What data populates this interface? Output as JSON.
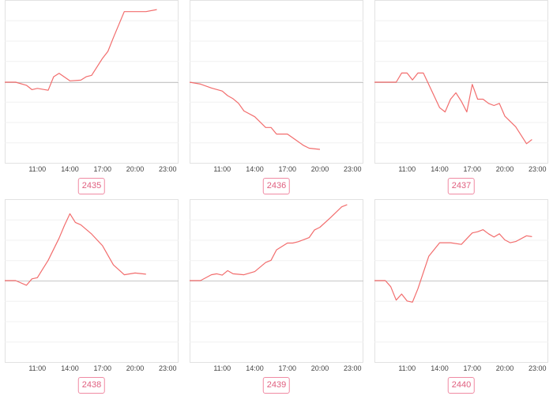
{
  "accent_color": "#f26d6d",
  "badge_color": "#e05f7f",
  "chart_data": [
    {
      "type": "line",
      "label": "2435",
      "xticks": [
        "11:00",
        "14:00",
        "17:00",
        "20:00",
        "23:00"
      ],
      "grid": true,
      "x": [
        "08:00",
        "09:00",
        "10:00",
        "10:30",
        "11:00",
        "12:00",
        "12:30",
        "13:00",
        "14:00",
        "15:00",
        "15:30",
        "16:00",
        "17:00",
        "17:30",
        "18:00",
        "19:00",
        "20:00",
        "21:00",
        "22:00"
      ],
      "y": [
        0,
        0,
        -0.5,
        -1.2,
        -1,
        -1.3,
        0.8,
        1.3,
        0.2,
        0.3,
        0.8,
        1,
        3.5,
        4.5,
        6.5,
        10.3,
        10.3,
        10.3,
        10.6
      ],
      "ylim": [
        -13,
        12
      ]
    },
    {
      "type": "line",
      "label": "2436",
      "xticks": [
        "11:00",
        "14:00",
        "17:00",
        "20:00",
        "23:00"
      ],
      "grid": true,
      "x": [
        "08:00",
        "09:00",
        "10:00",
        "11:00",
        "11:30",
        "12:00",
        "12:30",
        "13:00",
        "14:00",
        "15:00",
        "15:30",
        "16:00",
        "17:00",
        "17:30",
        "18:00",
        "18:30",
        "19:00",
        "20:00"
      ],
      "y": [
        0,
        -0.5,
        -1.5,
        -2.3,
        -3.5,
        -4.3,
        -5.5,
        -7.5,
        -9,
        -11.8,
        -11.8,
        -13.5,
        -13.5,
        -14.5,
        -15.5,
        -16.5,
        -17.2,
        -17.5
      ],
      "ylim": [
        -21,
        20
      ]
    },
    {
      "type": "line",
      "label": "2437",
      "xticks": [
        "11:00",
        "14:00",
        "17:00",
        "20:00",
        "23:00"
      ],
      "grid": true,
      "x": [
        "08:00",
        "09:00",
        "10:00",
        "10:30",
        "11:00",
        "11:30",
        "12:00",
        "12:30",
        "14:00",
        "14:30",
        "15:00",
        "15:30",
        "16:00",
        "16:30",
        "17:00",
        "17:30",
        "18:00",
        "18:30",
        "19:00",
        "19:30",
        "20:00",
        "21:00",
        "22:00",
        "22:30"
      ],
      "y": [
        0,
        0,
        0,
        2,
        2,
        0.5,
        2,
        2,
        -6,
        -7,
        -4,
        -2.5,
        -4.5,
        -7,
        -0.5,
        -4,
        -4,
        -5,
        -5.5,
        -5,
        -8,
        -10.5,
        -14.5,
        -13.5
      ],
      "ylim": [
        -19,
        18
      ]
    },
    {
      "type": "line",
      "label": "2438",
      "xticks": [
        "11:00",
        "14:00",
        "17:00",
        "20:00",
        "23:00"
      ],
      "grid": true,
      "x": [
        "08:00",
        "09:00",
        "10:00",
        "10:30",
        "11:00",
        "11:30",
        "12:00",
        "13:00",
        "13:30",
        "14:00",
        "14:30",
        "15:00",
        "16:00",
        "17:00",
        "18:00",
        "19:00",
        "20:00",
        "21:00"
      ],
      "y": [
        0,
        0,
        -0.8,
        0.3,
        0.5,
        2,
        3.5,
        7.3,
        9.5,
        11.5,
        10,
        9.6,
        8,
        6,
        2.7,
        1,
        1.3,
        1.1
      ],
      "ylim": [
        -14,
        14
      ]
    },
    {
      "type": "line",
      "label": "2439",
      "xticks": [
        "11:00",
        "14:00",
        "17:00",
        "20:00",
        "23:00"
      ],
      "grid": true,
      "x": [
        "08:00",
        "09:00",
        "10:00",
        "10:30",
        "11:00",
        "11:30",
        "12:00",
        "13:00",
        "14:00",
        "15:00",
        "15:30",
        "16:00",
        "17:00",
        "17:30",
        "18:00",
        "19:00",
        "19:30",
        "20:00",
        "21:00",
        "22:00",
        "22:30"
      ],
      "y": [
        0,
        0,
        1.3,
        1.5,
        1.2,
        2.2,
        1.5,
        1.3,
        2,
        4,
        4.5,
        6.8,
        8.3,
        8.3,
        8.6,
        9.5,
        11.2,
        11.8,
        14,
        16.3,
        16.8
      ],
      "ylim": [
        -19,
        18
      ]
    },
    {
      "type": "line",
      "label": "2440",
      "xticks": [
        "11:00",
        "14:00",
        "17:00",
        "20:00",
        "23:00"
      ],
      "grid": true,
      "x": [
        "08:00",
        "09:00",
        "09:30",
        "10:00",
        "10:30",
        "11:00",
        "11:30",
        "12:00",
        "12:30",
        "13:00",
        "14:00",
        "15:00",
        "16:00",
        "17:00",
        "17:30",
        "18:00",
        "18:30",
        "19:00",
        "19:30",
        "20:00",
        "20:30",
        "21:00",
        "22:00",
        "22:30"
      ],
      "y": [
        0,
        0,
        -1.5,
        -4.8,
        -3.3,
        -5,
        -5.3,
        -2,
        2,
        6,
        9.3,
        9.3,
        8.9,
        11.7,
        12,
        12.5,
        11.5,
        10.7,
        11.5,
        10,
        9.3,
        9.6,
        11,
        10.8
      ],
      "ylim": [
        -20,
        20
      ]
    }
  ]
}
